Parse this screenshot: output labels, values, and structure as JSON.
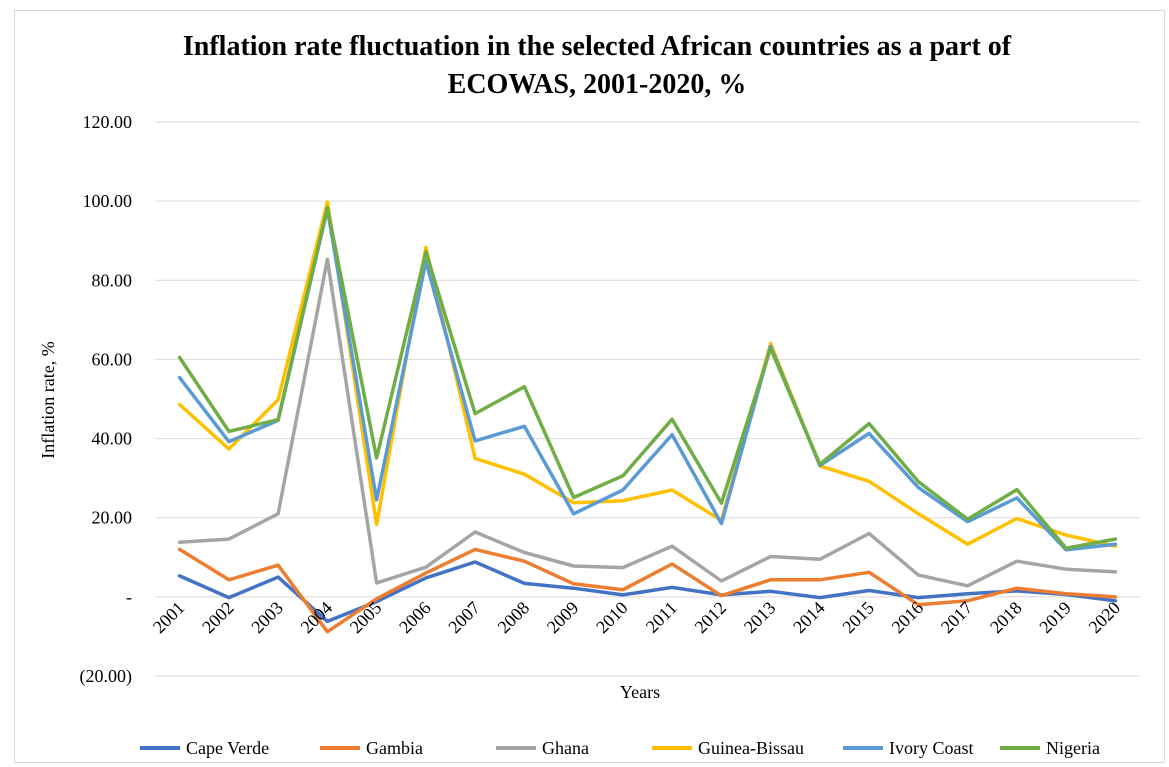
{
  "chart_data": {
    "type": "line",
    "title_line1": "Inflation rate fluctuation in the selected African countries as a part of",
    "title_line2": "ECOWAS, 2001-2020, %",
    "xlabel": "Years",
    "ylabel": "Inflation rate, %",
    "ylim": [
      -20,
      120
    ],
    "y_ticks": [
      {
        "value": 120,
        "label": "120.00"
      },
      {
        "value": 100,
        "label": "100.00"
      },
      {
        "value": 80,
        "label": "80.00"
      },
      {
        "value": 60,
        "label": "60.00"
      },
      {
        "value": 40,
        "label": "40.00"
      },
      {
        "value": 20,
        "label": "20.00"
      },
      {
        "value": 0,
        "label": "-"
      },
      {
        "value": -20,
        "label": "(20.00)"
      }
    ],
    "grid": true,
    "legend_position": "bottom",
    "categories": [
      "2001",
      "2002",
      "2003",
      "2004",
      "2005",
      "2006",
      "2007",
      "2008",
      "2009",
      "2010",
      "2011",
      "2012",
      "2013",
      "2014",
      "2015",
      "2016",
      "2017",
      "2018",
      "2019",
      "2020"
    ],
    "series": [
      {
        "name": "Cape Verde",
        "color": "#4472c4",
        "values": [
          5.3,
          -0.2,
          5.0,
          -6.2,
          -1.2,
          4.8,
          8.8,
          3.4,
          2.2,
          0.5,
          2.4,
          0.5,
          1.4,
          -0.2,
          1.6,
          -0.2,
          0.8,
          1.5,
          0.6,
          -1.0
        ]
      },
      {
        "name": "Gambia",
        "color": "#ed7d31",
        "values": [
          12.0,
          4.3,
          8.0,
          -8.8,
          -0.5,
          6.0,
          12.0,
          9.0,
          3.3,
          1.8,
          8.3,
          0.3,
          4.3,
          4.3,
          6.2,
          -2.0,
          -1.0,
          2.2,
          0.8,
          0.0
        ]
      },
      {
        "name": "Ghana",
        "color": "#a5a5a5",
        "values": [
          13.8,
          14.6,
          21.0,
          85.3,
          3.5,
          7.5,
          16.4,
          11.2,
          7.8,
          7.4,
          12.8,
          4.0,
          10.2,
          9.5,
          16.0,
          5.5,
          2.8,
          9.0,
          7.0,
          6.3
        ]
      },
      {
        "name": "Guinea-Bissau",
        "color": "#ffc000",
        "values": [
          48.6,
          37.4,
          49.8,
          99.8,
          18.3,
          88.3,
          35.0,
          31.0,
          23.8,
          24.3,
          27.0,
          19.3,
          64.0,
          33.1,
          29.2,
          21.0,
          13.3,
          19.8,
          15.6,
          12.8
        ]
      },
      {
        "name": "Ivory Coast",
        "color": "#5b9bd5",
        "values": [
          55.4,
          39.2,
          44.6,
          98.0,
          24.5,
          84.8,
          39.4,
          43.1,
          21.0,
          27.0,
          41.0,
          18.5,
          63.3,
          33.2,
          41.3,
          27.6,
          19.0,
          25.0,
          11.9,
          13.3
        ]
      },
      {
        "name": "Nigeria",
        "color": "#70ad47",
        "values": [
          60.5,
          41.8,
          44.8,
          98.4,
          35.1,
          87.2,
          46.3,
          53.1,
          25.1,
          30.6,
          44.9,
          23.7,
          62.8,
          33.5,
          43.8,
          29.1,
          19.6,
          27.1,
          12.3,
          14.6
        ]
      }
    ]
  }
}
